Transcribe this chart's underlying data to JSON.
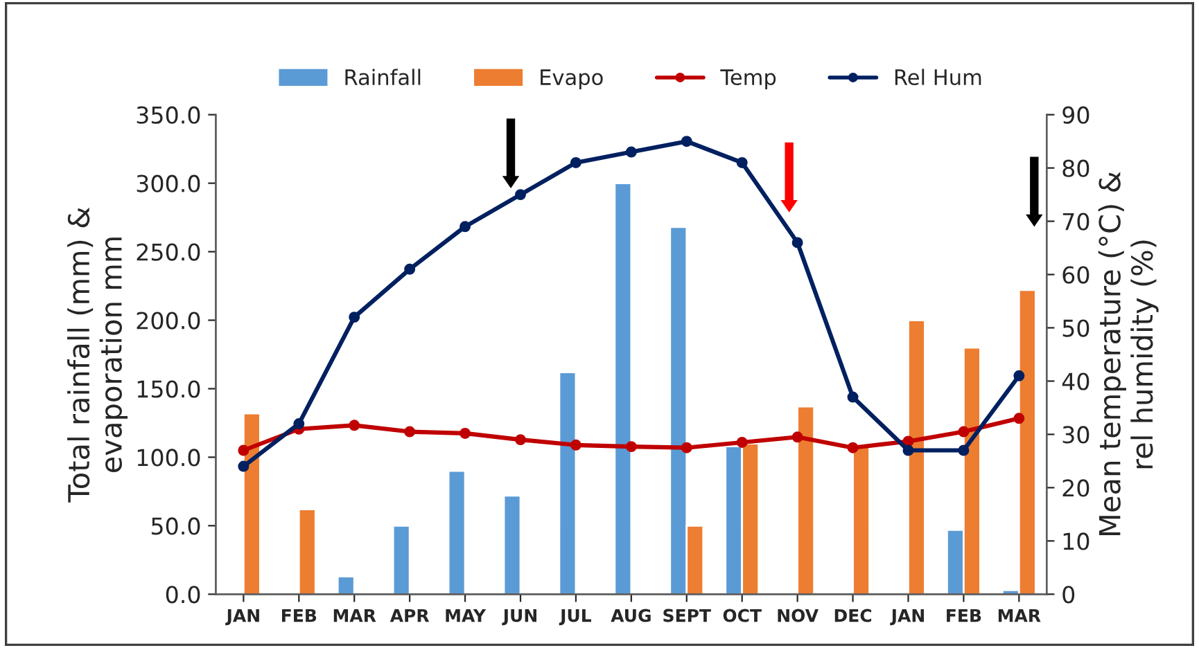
{
  "chart_data": {
    "type": "bar",
    "categories": [
      "JAN",
      "FEB",
      "MAR",
      "APR",
      "MAY",
      "JUN",
      "JUL",
      "AUG",
      "SEPT",
      "OCT",
      "NOV",
      "DEC",
      "JAN",
      "FEB",
      "MAR"
    ],
    "ylabel": "Total rainfall (mm) &\nevaporation mm",
    "y2label": "Mean temperature (°C) &\nrel humidity (%)",
    "ylim": [
      0,
      350
    ],
    "yticks": [
      {
        "value": 0,
        "label": "0.0"
      },
      {
        "value": 50,
        "label": "50.0"
      },
      {
        "value": 100,
        "label": "100.0"
      },
      {
        "value": 150,
        "label": "150.0"
      },
      {
        "value": 200,
        "label": "200.0"
      },
      {
        "value": 250,
        "label": "250.0"
      },
      {
        "value": 300,
        "label": "300.0"
      },
      {
        "value": 350,
        "label": "350.0"
      }
    ],
    "y2lim": [
      0,
      90
    ],
    "y2ticks": [
      0,
      10,
      20,
      30,
      40,
      50,
      60,
      70,
      80,
      90
    ],
    "legend": "top",
    "grid": false,
    "series": [
      {
        "name": "Rainfall",
        "color": "#5b9bd5",
        "values": [
          null,
          null,
          13,
          50,
          90,
          72,
          162,
          300,
          268,
          108,
          null,
          null,
          null,
          47,
          3
        ]
      },
      {
        "name": "Evapo",
        "color": "#ed7d31",
        "values": [
          132,
          62,
          null,
          null,
          null,
          null,
          null,
          null,
          50,
          110,
          137,
          108,
          200,
          180,
          222
        ]
      },
      {
        "name": "Temp",
        "type": "line",
        "axis": "y2",
        "color": "#c00000",
        "marker": "circle",
        "values": [
          27,
          31,
          31.7,
          30.5,
          30.2,
          29,
          28,
          27.7,
          27.5,
          28.5,
          29.5,
          27.5,
          28.7,
          30.5,
          33
        ]
      },
      {
        "name": "Rel Hum",
        "type": "line",
        "axis": "y2",
        "color": "#002060",
        "marker": "circle",
        "values": [
          24,
          32,
          52,
          61,
          69,
          75,
          81,
          83,
          85,
          81,
          66,
          37,
          27,
          27,
          41
        ]
      }
    ]
  }
}
